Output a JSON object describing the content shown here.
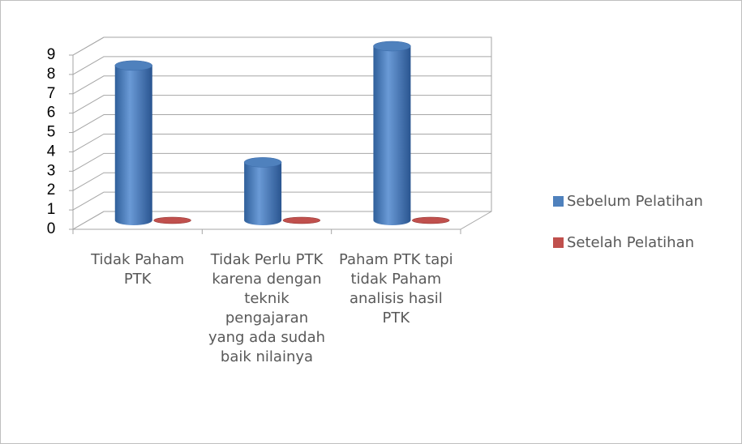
{
  "chart_data": {
    "type": "bar3d",
    "categories": [
      "Tidak Paham PTK",
      "Tidak Perlu PTK karena dengan teknik pengajaran yang ada sudah baik nilainya",
      "Paham PTK tapi tidak Paham analisis hasil PTK"
    ],
    "series": [
      {
        "name": "Sebelum Pelatihan",
        "color": "#4f81bd",
        "values": [
          8,
          3,
          9
        ]
      },
      {
        "name": "Setelah Pelatihan",
        "color": "#c0504d",
        "values": [
          0,
          0,
          0
        ]
      }
    ],
    "ylim": [
      0,
      9
    ],
    "yticks": [
      0,
      1,
      2,
      3,
      4,
      5,
      6,
      7,
      8,
      9
    ],
    "grid": true,
    "legend": "right"
  }
}
